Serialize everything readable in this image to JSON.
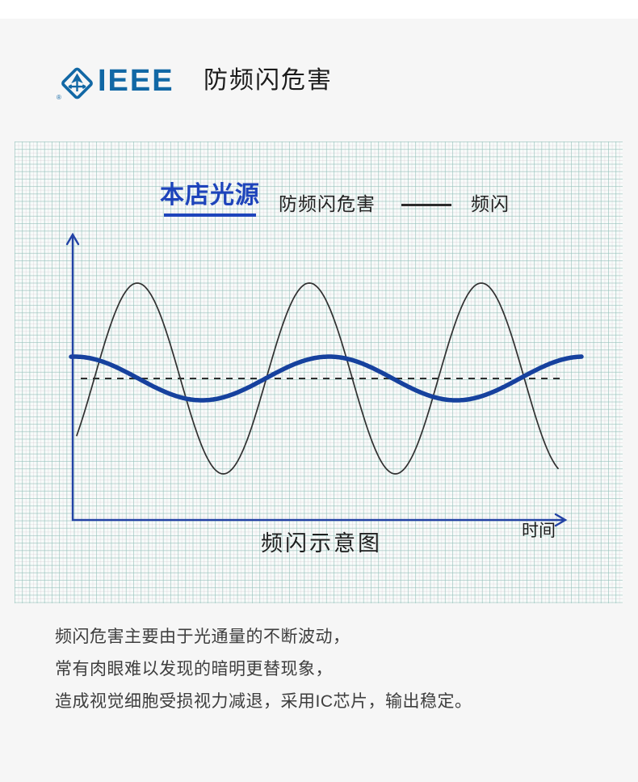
{
  "header": {
    "brand": "IEEE",
    "brand_color": "#1268a5",
    "registered_mark": "®",
    "title": "防频闪危害"
  },
  "chart_data": {
    "type": "line",
    "title": "频闪示意图",
    "xlabel": "时间",
    "ylabel": "",
    "description": "示意图：黑色细线为普通光源的强烈频闪波动，蓝色粗线为本店光源的平稳光通量输出，虚线为平均光通量基准线",
    "grid": "graph-paper",
    "legend_position": "top",
    "legend": [
      {
        "label": "本店光源",
        "note": "防频闪危害",
        "color": "#16419e"
      },
      {
        "label": "频闪",
        "color": "#2b2b2b"
      }
    ],
    "baseline": {
      "style": "dashed",
      "y": 293,
      "x1": 82,
      "x2": 679,
      "color": "#2e2e2e"
    },
    "axes": {
      "x0": 72,
      "y0": 468,
      "y_top": 115,
      "x_end": 682,
      "color": "#2342a5"
    },
    "series": [
      {
        "id": "flicker-wave",
        "name": "频闪",
        "color": "#303030",
        "width": 1.7,
        "midline": 293,
        "amplitude": 118,
        "period": 213,
        "peak_x": 152,
        "x_start": 77,
        "x_end": 674
      },
      {
        "id": "store-light-wave",
        "name": "本店光源",
        "color": "#16419e",
        "width": 5.5,
        "midline": 293,
        "amplitude": 27,
        "period": 315,
        "peak_x": 389.5,
        "x_start": 70,
        "x_end": 702
      }
    ]
  },
  "footer": {
    "lines": [
      "频闪危害主要由于光通量的不断波动，",
      "常有肉眼难以发现的暗明更替现象，",
      "造成视觉细胞受损视力减退，采用IC芯片，输出稳定。"
    ]
  },
  "colors": {
    "page_bg": "#f6f6f6",
    "top_strip_bg": "#ffffff",
    "panel_bg": "#f8fbfa",
    "grid_major": "#91c6bd",
    "brand_blue": "#1268a5",
    "legend_blue": "#1e44bb",
    "curve_blue": "#16419e",
    "axis_blue": "#2342a5",
    "text_dark": "#3e3e3e"
  }
}
